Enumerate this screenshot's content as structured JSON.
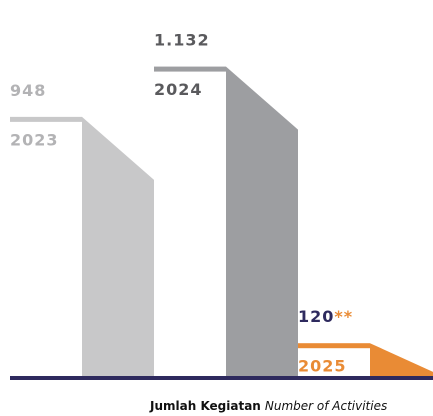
{
  "chart_data": {
    "type": "bar",
    "categories": [
      "2023",
      "2024",
      "2025"
    ],
    "values": [
      948,
      1132,
      120
    ],
    "value_labels": [
      "948",
      "1.132",
      "120**"
    ],
    "colors": [
      "#c8c8c9",
      "#9d9ea1",
      "#e98b35"
    ],
    "label_colors": [
      "#b3b3b5",
      "#5a5a5d",
      "#e98b35"
    ],
    "value_label_colors": [
      "#b3b3b5",
      "#5a5a5d",
      "#2e2a5e"
    ],
    "accent_color": "#e98b35",
    "baseline_color": "#2e2a5e",
    "ylim": [
      0,
      1200
    ],
    "caption": {
      "bold": "Jumlah Kegiatan",
      "italic": "Number of Activities"
    }
  }
}
